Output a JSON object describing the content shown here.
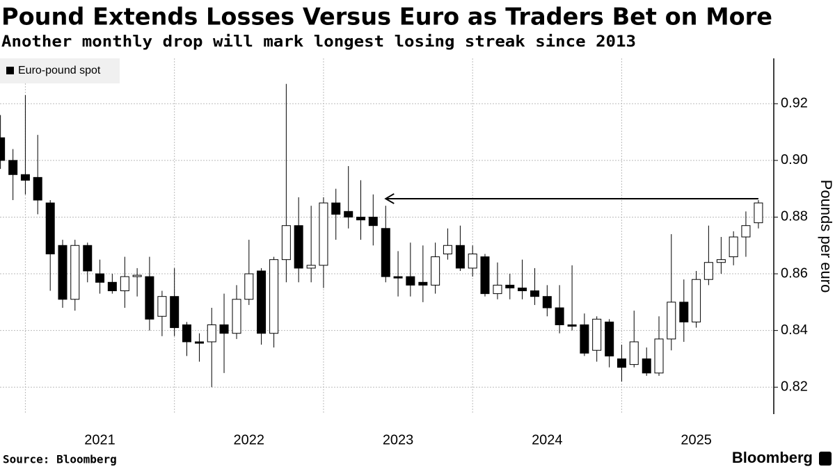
{
  "chart_data": {
    "type": "candlestick",
    "title": "Pound Extends Losses Versus Euro as Traders Bet on More",
    "subtitle": "Another monthly drop will mark longest losing streak since 2013",
    "y_label": "Pounds per euro",
    "source": "Source: Bloomberg",
    "brand": "Bloomberg",
    "x": [
      2020.833,
      2020.917,
      2021.0,
      2021.083,
      2021.167,
      2021.25,
      2021.333,
      2021.417,
      2021.5,
      2021.583,
      2021.667,
      2021.75,
      2021.833,
      2021.917,
      2022.0,
      2022.083,
      2022.167,
      2022.25,
      2022.333,
      2022.417,
      2022.5,
      2022.583,
      2022.667,
      2022.75,
      2022.833,
      2022.917,
      2023.0,
      2023.083,
      2023.167,
      2023.25,
      2023.333,
      2023.417,
      2023.5,
      2023.583,
      2023.667,
      2023.75,
      2023.833,
      2023.917,
      2024.0,
      2024.083,
      2024.167,
      2024.25,
      2024.333,
      2024.417,
      2024.5,
      2024.583,
      2024.667,
      2024.75,
      2024.833,
      2024.917,
      2025.0,
      2025.083,
      2025.167,
      2025.25,
      2025.333,
      2025.417,
      2025.5,
      2025.583,
      2025.667,
      2025.75,
      2025.833,
      2025.917
    ],
    "series": [
      {
        "name": "Euro-pound spot",
        "color": "#000000",
        "up_color": "#ffffff",
        "open": [
          0.908,
          0.9,
          0.895,
          0.894,
          0.885,
          0.87,
          0.851,
          0.87,
          0.86,
          0.857,
          0.854,
          0.859,
          0.859,
          0.845,
          0.852,
          0.842,
          0.836,
          0.836,
          0.842,
          0.839,
          0.851,
          0.861,
          0.839,
          0.865,
          0.877,
          0.862,
          0.863,
          0.885,
          0.882,
          0.88,
          0.88,
          0.876,
          0.859,
          0.859,
          0.857,
          0.856,
          0.867,
          0.87,
          0.862,
          0.866,
          0.853,
          0.856,
          0.855,
          0.854,
          0.852,
          0.848,
          0.842,
          0.842,
          0.833,
          0.843,
          0.83,
          0.828,
          0.83,
          0.825,
          0.837,
          0.85,
          0.843,
          0.858,
          0.864,
          0.866,
          0.873,
          0.878
        ],
        "high": [
          0.916,
          0.904,
          0.923,
          0.909,
          0.886,
          0.872,
          0.872,
          0.871,
          0.865,
          0.86,
          0.866,
          0.862,
          0.866,
          0.854,
          0.862,
          0.843,
          0.839,
          0.848,
          0.853,
          0.856,
          0.872,
          0.862,
          0.866,
          0.927,
          0.887,
          0.884,
          0.887,
          0.89,
          0.898,
          0.893,
          0.888,
          0.884,
          0.868,
          0.871,
          0.87,
          0.871,
          0.876,
          0.877,
          0.87,
          0.867,
          0.864,
          0.86,
          0.865,
          0.862,
          0.856,
          0.856,
          0.863,
          0.846,
          0.845,
          0.844,
          0.835,
          0.847,
          0.834,
          0.845,
          0.874,
          0.858,
          0.861,
          0.877,
          0.873,
          0.875,
          0.882,
          0.886
        ],
        "low": [
          0.897,
          0.886,
          0.888,
          0.881,
          0.854,
          0.848,
          0.847,
          0.857,
          0.853,
          0.853,
          0.848,
          0.852,
          0.84,
          0.838,
          0.838,
          0.831,
          0.829,
          0.82,
          0.825,
          0.837,
          0.849,
          0.835,
          0.834,
          0.857,
          0.857,
          0.857,
          0.855,
          0.872,
          0.876,
          0.872,
          0.87,
          0.857,
          0.852,
          0.852,
          0.85,
          0.853,
          0.865,
          0.861,
          0.859,
          0.852,
          0.851,
          0.851,
          0.851,
          0.849,
          0.845,
          0.839,
          0.84,
          0.831,
          0.829,
          0.827,
          0.822,
          0.827,
          0.824,
          0.824,
          0.833,
          0.836,
          0.841,
          0.856,
          0.86,
          0.863,
          0.866,
          0.876
        ],
        "close": [
          0.9,
          0.895,
          0.893,
          0.886,
          0.867,
          0.851,
          0.87,
          0.861,
          0.857,
          0.854,
          0.859,
          0.8595,
          0.844,
          0.852,
          0.841,
          0.836,
          0.8355,
          0.842,
          0.839,
          0.851,
          0.86,
          0.839,
          0.865,
          0.877,
          0.862,
          0.863,
          0.885,
          0.881,
          0.88,
          0.879,
          0.877,
          0.859,
          0.8585,
          0.856,
          0.856,
          0.866,
          0.87,
          0.862,
          0.867,
          0.853,
          0.856,
          0.855,
          0.854,
          0.852,
          0.848,
          0.842,
          0.8415,
          0.832,
          0.844,
          0.831,
          0.827,
          0.836,
          0.825,
          0.837,
          0.85,
          0.843,
          0.858,
          0.864,
          0.865,
          0.873,
          0.877,
          0.885
        ]
      }
    ],
    "xlim": [
      2020.83,
      2026.02
    ],
    "xgrid": [
      2021,
      2022,
      2023,
      2024,
      2025
    ],
    "xticks": [
      {
        "value": 2021.5,
        "label": "2021"
      },
      {
        "value": 2022.5,
        "label": "2022"
      },
      {
        "value": 2023.5,
        "label": "2023"
      },
      {
        "value": 2024.5,
        "label": "2024"
      },
      {
        "value": 2025.5,
        "label": "2025"
      }
    ],
    "ylim": [
      0.8105,
      0.936
    ],
    "yticks": [
      0.82,
      0.84,
      0.86,
      0.88,
      {
        "value": 0.9,
        "label": "0.90"
      },
      0.92
    ],
    "grid": true,
    "legend": "top-left",
    "arrow": {
      "y": 0.8865,
      "x_from": 2025.917,
      "x_to": 2023.417
    }
  }
}
